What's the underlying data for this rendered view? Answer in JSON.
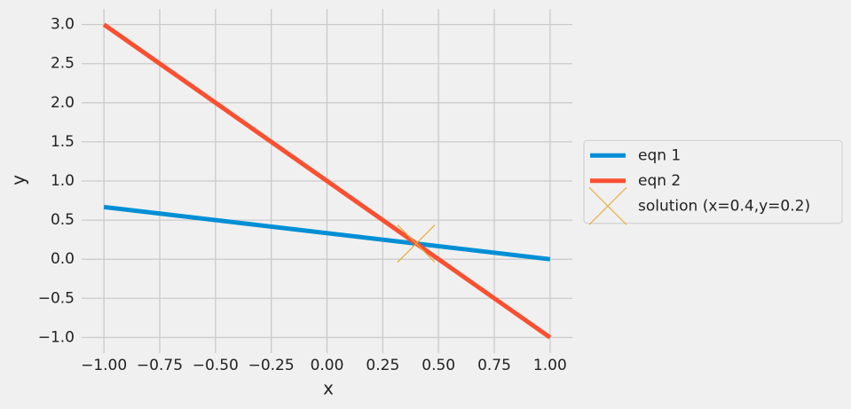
{
  "chart_data": {
    "type": "line",
    "x_label": "x",
    "y_label": "y",
    "xlim": [
      -1.1,
      1.1
    ],
    "ylim": [
      -1.2,
      3.2
    ],
    "xticks": [
      {
        "value": -1,
        "label": "−1.00"
      },
      {
        "value": -0.75,
        "label": "−0.75"
      },
      {
        "value": -0.5,
        "label": "−0.50"
      },
      {
        "value": -0.25,
        "label": "−0.25"
      },
      {
        "value": 0,
        "label": "0.00"
      },
      {
        "value": 0.25,
        "label": "0.25"
      },
      {
        "value": 0.5,
        "label": "0.50"
      },
      {
        "value": 0.75,
        "label": "0.75"
      },
      {
        "value": 1,
        "label": "1.00"
      }
    ],
    "yticks": [
      {
        "value": -1,
        "label": "−1.0"
      },
      {
        "value": -0.5,
        "label": "−0.5"
      },
      {
        "value": 0,
        "label": "0.0"
      },
      0.5,
      {
        "value": 1,
        "label": "1.0"
      },
      1.5,
      {
        "value": 2,
        "label": "2.0"
      },
      2.5,
      {
        "value": 3,
        "label": "3.0"
      }
    ],
    "grid": true,
    "legend": "outside right",
    "series": [
      {
        "name": "eqn 1",
        "color": "#008fd5",
        "x": [
          -1,
          1
        ],
        "values": [
          0.6667,
          0
        ]
      },
      {
        "name": "eqn 2",
        "color": "#fc4f30",
        "x": [
          -1,
          1
        ],
        "values": [
          3,
          -1
        ]
      },
      {
        "name": "solution (x=0.4,y=0.2)",
        "color": "#e5ae38",
        "marker": "x",
        "x": [
          0.4
        ],
        "values": [
          0.2
        ]
      }
    ]
  }
}
